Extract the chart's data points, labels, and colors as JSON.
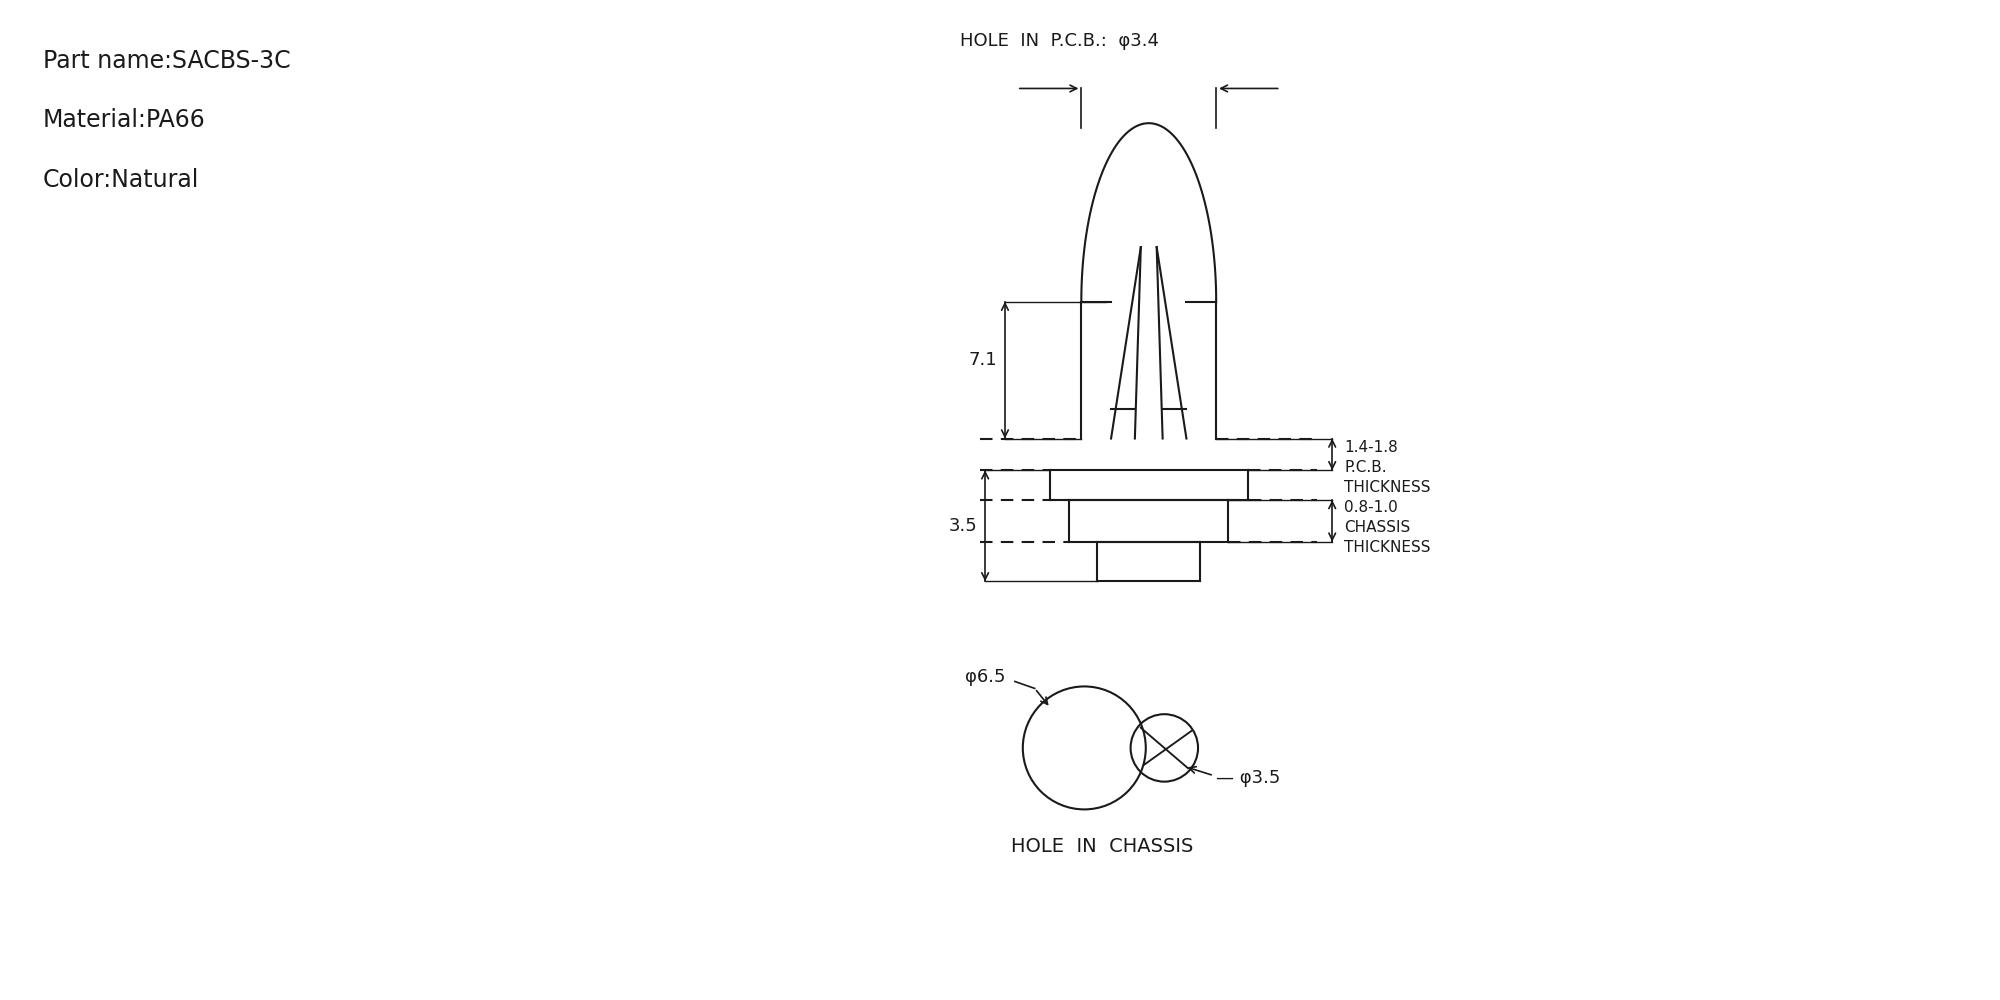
{
  "bg_color": "#ffffff",
  "line_color": "#1a1a1a",
  "text_color": "#1a1a1a",
  "part_name": "Part name:SACBS-3C",
  "material": "Material:PA66",
  "color_label": "Color:Natural",
  "hole_pcb_label": "HOLE  IN  P.C.B.:  φ3.4",
  "dim_71": "7.1",
  "dim_35": "3.5",
  "dim_phi65": "φ6.5",
  "dim_phi35": "φ3.5",
  "hole_chassis_label": "HOLE  IN  CHASSIS",
  "figsize": [
    20,
    10
  ],
  "dpi": 100
}
